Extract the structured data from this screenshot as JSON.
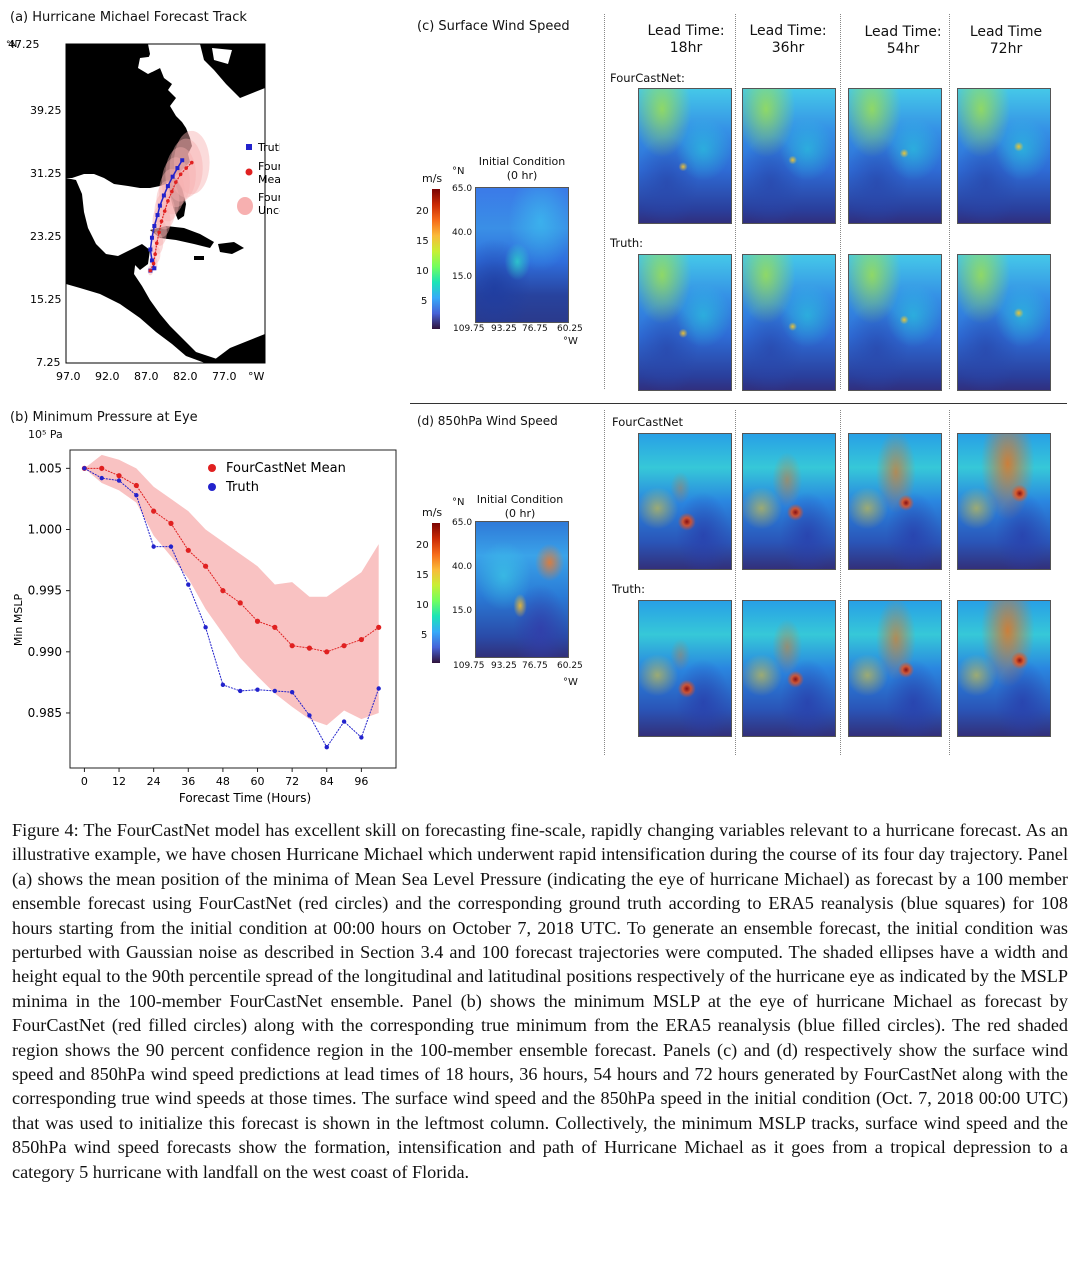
{
  "panel_a": {
    "title": "(a) Hurricane Michael Forecast Track",
    "y_unit": "°N",
    "x_unit": "°W",
    "legend": {
      "truth": "Truth",
      "mean_line1": "FourCastNet",
      "mean_line2": "Mean",
      "unc_line1": "FourCastNet",
      "unc_line2": "Uncertainty"
    },
    "colors": {
      "truth": "#2222cc",
      "mean": "#e02020",
      "uncertainty": "#f7b0b0"
    }
  },
  "panel_b": {
    "title": "(b) Minimum Pressure at Eye",
    "unit": "10⁵ Pa"
  },
  "panel_c": {
    "title": "(c) Surface Wind Speed",
    "ic_title_line1": "Initial Condition",
    "ic_title_line2": "(0 hr)",
    "unit": "m/s",
    "lat_unit": "°N",
    "lon_unit": "°W",
    "cbar_ticks": [
      "20",
      "15",
      "10",
      "5"
    ],
    "map_yticks": [
      "65.0",
      "40.0",
      "15.0"
    ],
    "map_xticks": [
      "109.75",
      "93.25",
      "76.75",
      "60.25"
    ],
    "fourcastnet_label": "FourCastNet:",
    "truth_label": "Truth:"
  },
  "panel_d": {
    "title": "(d) 850hPa Wind Speed",
    "ic_title_line1": "Initial Condition",
    "ic_title_line2": "(0 hr)",
    "unit": "m/s",
    "lat_unit": "°N",
    "lon_unit": "°W",
    "cbar_ticks": [
      "20",
      "15",
      "10",
      "5"
    ],
    "map_yticks": [
      "65.0",
      "40.0",
      "15.0"
    ],
    "map_xticks": [
      "109.75",
      "93.25",
      "76.75",
      "60.25"
    ],
    "fourcastnet_label": "FourCastNet",
    "truth_label": "Truth:"
  },
  "lead_times": [
    {
      "line1": "Lead Time:",
      "line2": "18hr"
    },
    {
      "line1": "Lead Time:",
      "line2": "36hr"
    },
    {
      "line1": "Lead Time:",
      "line2": "54hr"
    },
    {
      "line1": "Lead Time",
      "line2": "72hr"
    }
  ],
  "caption": "Figure 4: The FourCastNet model has excellent skill on forecasting fine-scale, rapidly changing variables relevant to a hurricane forecast. As an illustrative example, we have chosen Hurricane Michael which underwent rapid intensification during the course of its four day trajectory. Panel (a) shows the mean position of the minima of Mean Sea Level Pressure (indicating the eye of hurricane Michael) as forecast by a 100 member ensemble forecast using FourCastNet (red circles) and the corresponding ground truth according to ERA5 reanalysis (blue squares) for 108 hours starting from the initial condition at 00:00 hours on October 7, 2018 UTC. To generate an ensemble forecast, the initial condition was perturbed with Gaussian noise as described in Section 3.4 and 100 forecast trajectories were computed. The shaded ellipses have a width and height equal to the 90th percentile spread of the longitudinal and latitudinal positions respectively of the hurricane eye as indicated by the MSLP minima in the 100-member FourCastNet ensemble. Panel (b) shows the minimum MSLP at the eye of hurricane Michael as forecast by FourCastNet (red filled circles) along with the corresponding true minimum from the ERA5 reanalysis (blue filled circles). The red shaded region shows the 90 percent confidence region in the 100-member ensemble forecast. Panels (c) and (d) respectively show the surface wind speed and 850hPa wind speed predictions at lead times of 18 hours, 36 hours, 54 hours and 72 hours generated by FourCastNet along with the corresponding true wind speeds at those times. The surface wind speed and the 850hPa speed in the initial condition (Oct. 7, 2018 00:00 UTC) that was used to initialize this forecast is shown in the leftmost column. Collectively, the minimum MSLP tracks, surface wind speed and the 850hPa wind speed forecasts show the formation, intensification and path of Hurricane Michael as it goes from a tropical depression to a category 5 hurricane with landfall on the west coast of Florida.",
  "chart_data": [
    {
      "type": "line",
      "title": "(a) Hurricane Michael Forecast Track",
      "xlabel": "°W",
      "ylabel": "°N",
      "x_ticks": [
        "97.0",
        "92.0",
        "87.0",
        "82.0",
        "77.0"
      ],
      "y_ticks": [
        "47.25",
        "39.25",
        "31.25",
        "23.25",
        "15.25",
        "7.25"
      ],
      "xlim": [
        97.5,
        72.5
      ],
      "ylim": [
        6.5,
        47.25
      ],
      "series": [
        {
          "name": "Truth",
          "x": [
            86.9,
            86.4,
            86.7,
            86.9,
            86.7,
            86.4,
            86.0,
            85.7,
            85.2,
            84.7,
            84.1,
            83.5,
            82.9
          ],
          "y": [
            18.3,
            18.6,
            19.6,
            21.0,
            22.5,
            24.0,
            25.4,
            26.6,
            27.9,
            29.1,
            30.3,
            31.4,
            32.4
          ]
        },
        {
          "name": "FourCastNet Mean",
          "x": [
            86.9,
            86.5,
            86.3,
            86.1,
            85.8,
            85.5,
            85.1,
            84.7,
            84.2,
            83.7,
            83.1,
            82.4,
            81.7
          ],
          "y": [
            18.3,
            19.2,
            20.4,
            21.8,
            23.2,
            24.6,
            25.9,
            27.2,
            28.4,
            29.6,
            30.6,
            31.4,
            32.1
          ]
        }
      ]
    },
    {
      "type": "line",
      "title": "(b) Minimum Pressure at Eye",
      "xlabel": "Forecast Time (Hours)",
      "ylabel": "Min MSLP",
      "x_ticks": [
        "0",
        "12",
        "24",
        "36",
        "48",
        "60",
        "72",
        "84",
        "96"
      ],
      "y_ticks": [
        "1.005",
        "1.000",
        "0.995",
        "0.990",
        "0.985"
      ],
      "xlim": [
        -5,
        108
      ],
      "ylim": [
        0.9805,
        1.0065
      ],
      "series": [
        {
          "name": "FourCastNet Mean",
          "x": [
            0,
            6,
            12,
            18,
            24,
            30,
            36,
            42,
            48,
            54,
            60,
            66,
            72,
            78,
            84,
            90,
            96,
            102
          ],
          "y": [
            1.005,
            1.005,
            1.0044,
            1.0036,
            1.0015,
            1.0005,
            0.9983,
            0.997,
            0.995,
            0.994,
            0.9925,
            0.992,
            0.9905,
            0.9903,
            0.99,
            0.9905,
            0.991,
            0.992
          ]
        },
        {
          "name": "Truth",
          "x": [
            0,
            6,
            12,
            18,
            24,
            30,
            36,
            42,
            48,
            54,
            60,
            66,
            72,
            78,
            84,
            90,
            96,
            102
          ],
          "y": [
            1.005,
            1.0042,
            1.004,
            1.0028,
            0.9986,
            0.9986,
            0.9955,
            0.992,
            0.9873,
            0.9868,
            0.9869,
            0.9868,
            0.9867,
            0.9848,
            0.9822,
            0.9843,
            0.983,
            0.987
          ]
        },
        {
          "name": "90% confidence upper",
          "x": [
            0,
            6,
            12,
            18,
            24,
            30,
            36,
            42,
            48,
            54,
            60,
            66,
            72,
            78,
            84,
            90,
            96,
            102
          ],
          "y": [
            1.005,
            1.0061,
            1.0057,
            1.005,
            1.0035,
            1.0025,
            1.0015,
            1.0,
            0.999,
            0.998,
            0.997,
            0.9955,
            0.9957,
            0.9945,
            0.9945,
            0.9955,
            0.9965,
            0.9988
          ]
        },
        {
          "name": "90% confidence lower",
          "x": [
            0,
            6,
            12,
            18,
            24,
            30,
            36,
            42,
            48,
            54,
            60,
            66,
            72,
            78,
            84,
            90,
            96,
            102
          ],
          "y": [
            1.005,
            1.0038,
            1.0032,
            1.0022,
            0.9995,
            0.9978,
            0.996,
            0.9935,
            0.9915,
            0.9895,
            0.988,
            0.9866,
            0.9855,
            0.9845,
            0.984,
            0.9852,
            0.9845,
            0.985
          ]
        }
      ]
    }
  ]
}
